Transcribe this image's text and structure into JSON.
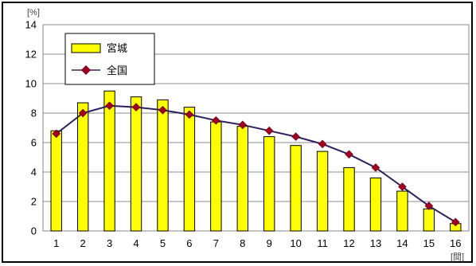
{
  "chart_data": {
    "type": "bar",
    "categories": [
      "1",
      "2",
      "3",
      "4",
      "5",
      "6",
      "7",
      "8",
      "9",
      "10",
      "11",
      "12",
      "13",
      "14",
      "15",
      "16"
    ],
    "series": [
      {
        "name": "宮城",
        "type": "bar",
        "color": "#ffff00",
        "values": [
          6.8,
          8.7,
          9.5,
          9.1,
          8.9,
          8.4,
          7.4,
          7.1,
          6.4,
          5.8,
          5.4,
          4.3,
          3.6,
          2.7,
          1.5,
          0.5
        ]
      },
      {
        "name": "全国",
        "type": "line",
        "color": "#2e1f5e",
        "marker_color": "#a0001e",
        "values": [
          6.6,
          8.0,
          8.5,
          8.4,
          8.2,
          7.9,
          7.5,
          7.2,
          6.8,
          6.4,
          5.9,
          5.2,
          4.3,
          3.0,
          1.7,
          0.6
        ]
      }
    ],
    "yticks": [
      "0",
      "2",
      "4",
      "6",
      "8",
      "10",
      "12",
      "14"
    ],
    "ylim": [
      0,
      14
    ],
    "ylabel_unit": "[%]",
    "xlabel_unit": "[間]",
    "grid": true,
    "legend_position": "top-left"
  }
}
